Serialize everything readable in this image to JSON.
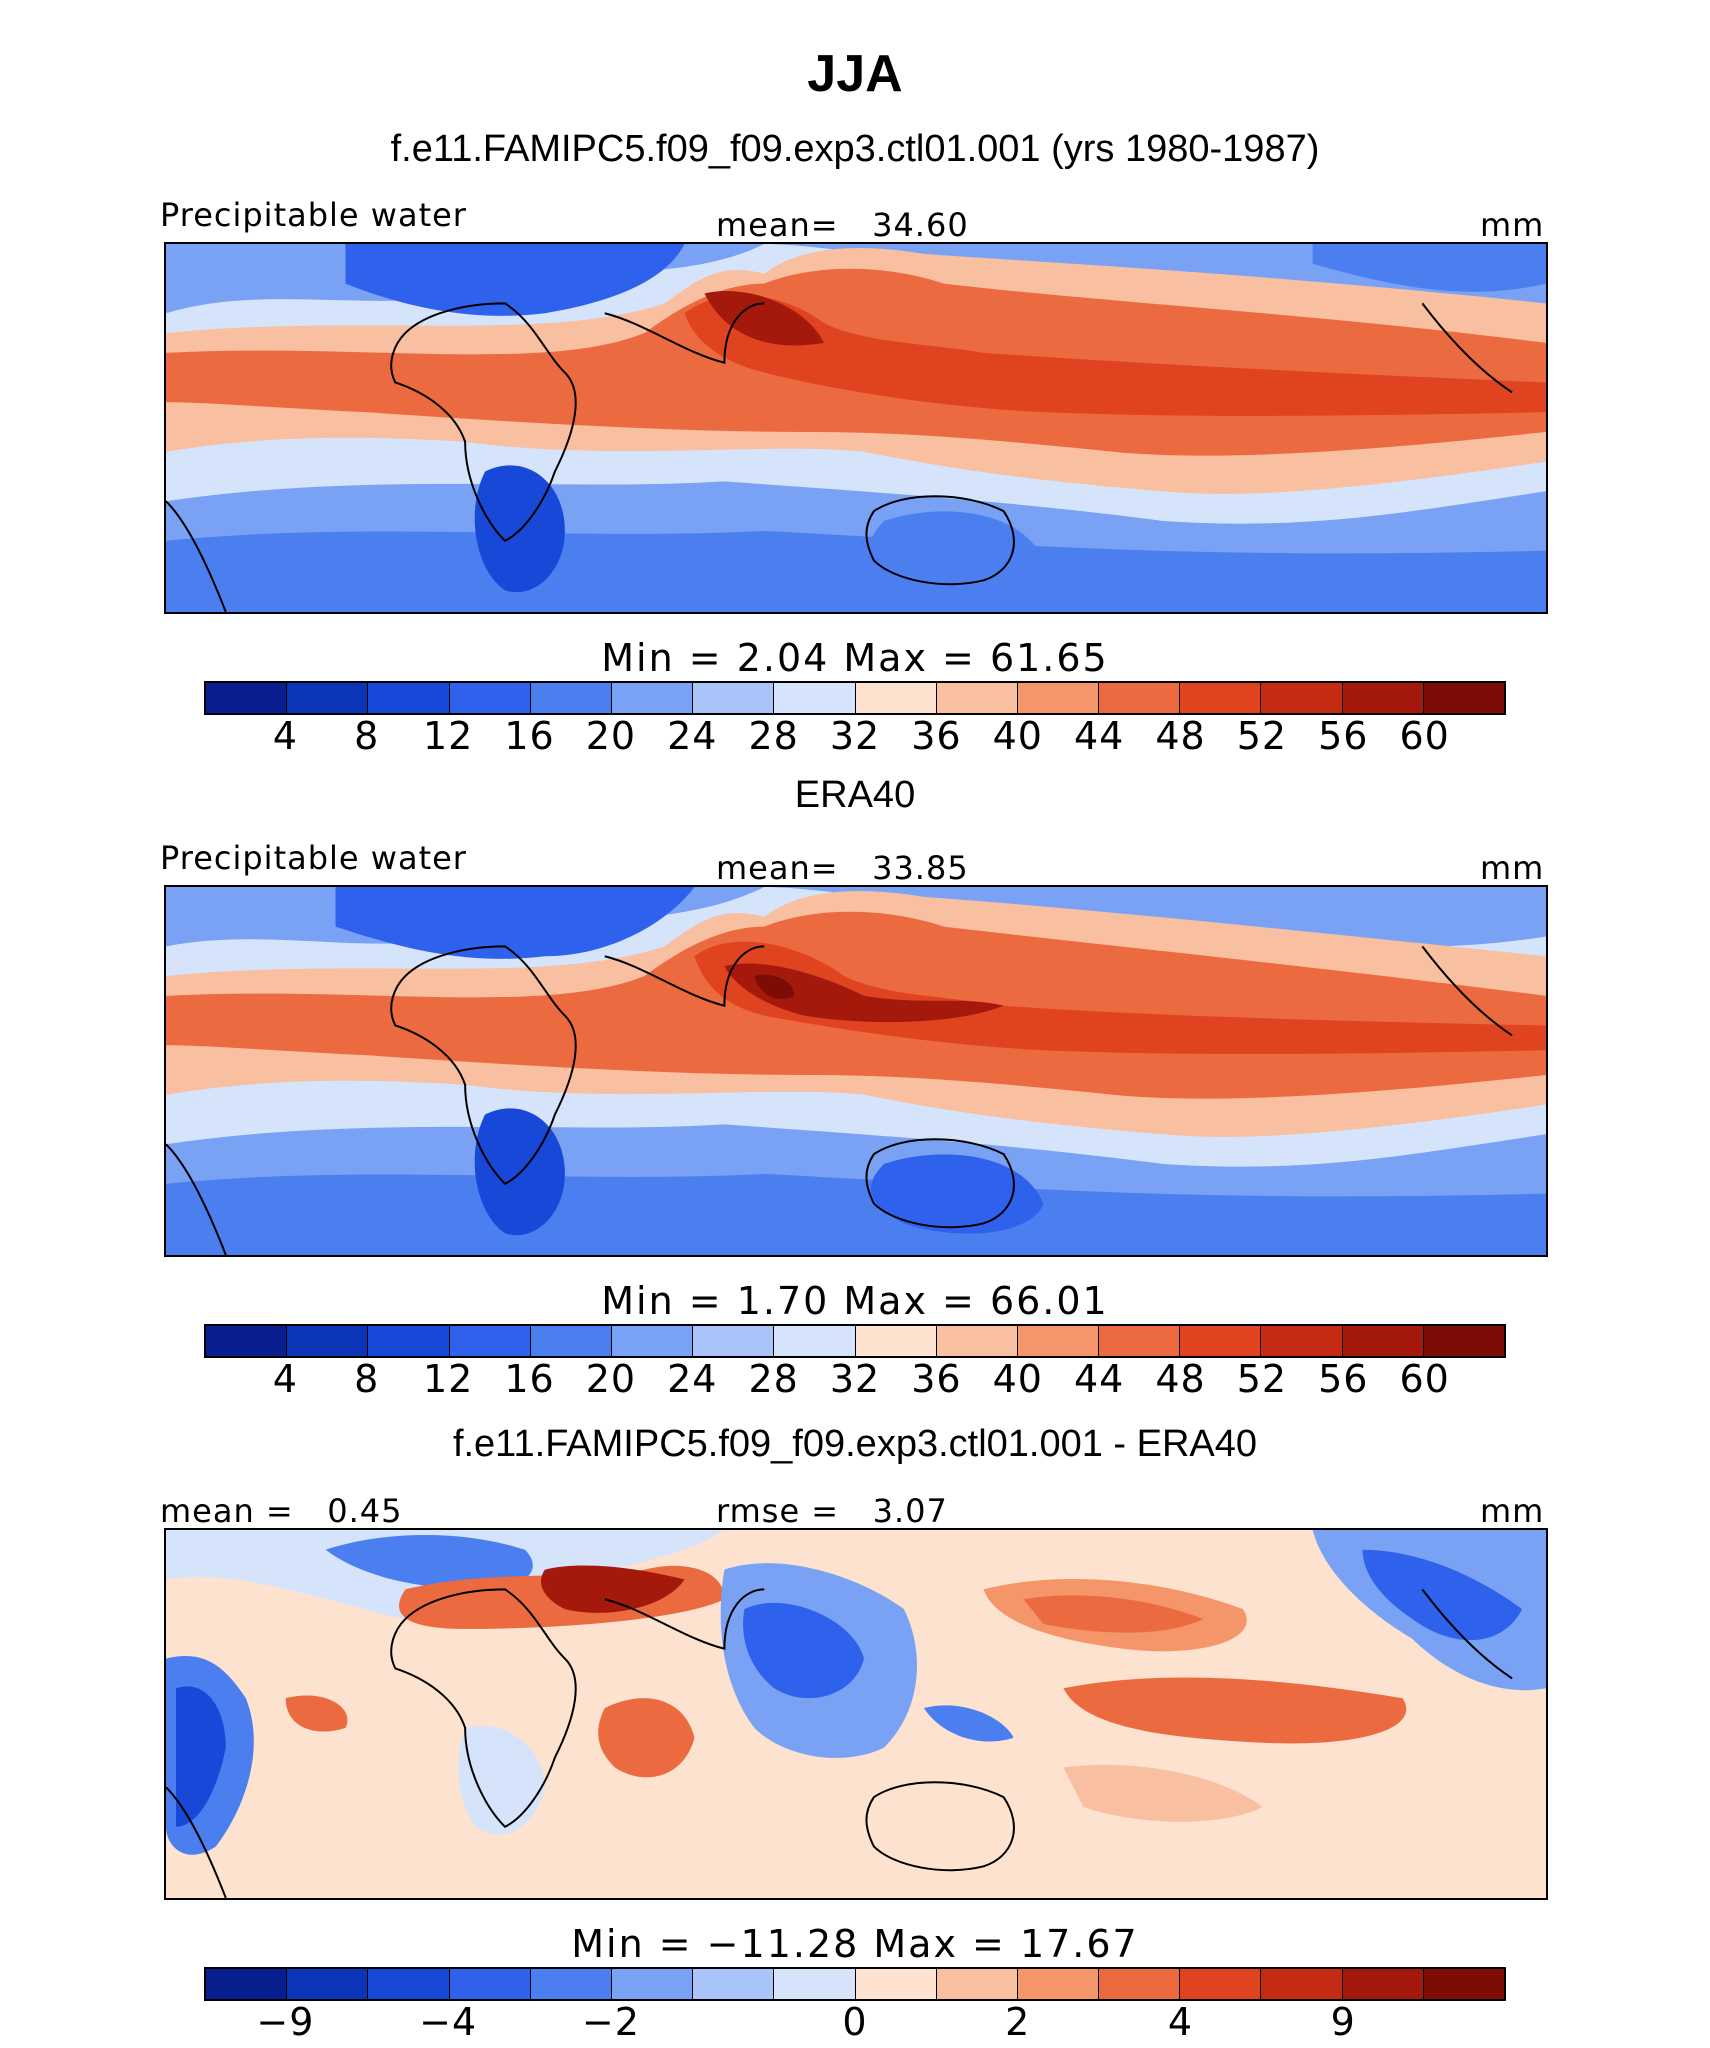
{
  "title": "JJA",
  "subtitle": "f.e11.FAMIPC5.f09_f09.exp3.ctl01.001 (yrs 1980-1987)",
  "palette_full": [
    "#0a1f8f",
    "#0d35b8",
    "#1848d8",
    "#2e62ec",
    "#4b7ff0",
    "#7aa2f4",
    "#a9c4f8",
    "#d6e4fb",
    "#fde2cf",
    "#f9bfa1",
    "#f4956a",
    "#ec6a3f",
    "#df4320",
    "#c52a12",
    "#a4190c",
    "#7d0b06"
  ],
  "panels": [
    {
      "variable": "Precipitable water",
      "mean_label": "mean=",
      "mean_value": "34.60",
      "units": "mm",
      "stats_line": "Min =    2.04  Max =   61.65",
      "tick_labels": [
        "4",
        "8",
        "12",
        "16",
        "20",
        "24",
        "28",
        "32",
        "36",
        "40",
        "44",
        "48",
        "52",
        "56",
        "60"
      ]
    },
    {
      "label_title": "ERA40",
      "variable": "Precipitable water",
      "mean_label": "mean=",
      "mean_value": "33.85",
      "units": "mm",
      "stats_line": "Min =    1.70  Max =   66.01",
      "tick_labels": [
        "4",
        "8",
        "12",
        "16",
        "20",
        "24",
        "28",
        "32",
        "36",
        "40",
        "44",
        "48",
        "52",
        "56",
        "60"
      ]
    },
    {
      "label_title": "f.e11.FAMIPC5.f09_f09.exp3.ctl01.001 - ERA40",
      "mean_label": "mean =",
      "mean_value": "0.45",
      "rmse_label": "rmse =",
      "rmse_value": "3.07",
      "units": "mm",
      "stats_line": "Min = −11.28  Max =   17.67",
      "tick_labels": [
        "−9",
        "−4",
        "−2",
        "0",
        "2",
        "4",
        "9"
      ]
    }
  ]
}
